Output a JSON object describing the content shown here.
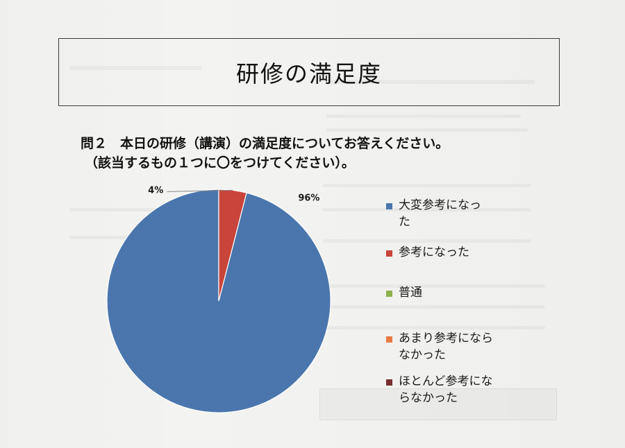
{
  "header": {
    "title": "研修の満足度"
  },
  "question": {
    "line1": "問２　本日の研修（講演）の満足度についてお答えください。",
    "line2": "（該当するもの１つに〇をつけてください）。"
  },
  "chart_data": {
    "type": "pie",
    "categories": [
      "大変参考になった",
      "参考になった",
      "普通",
      "あまり参考にならなかった",
      "ほとんど参考にならなかった"
    ],
    "values": [
      96,
      4,
      0,
      0,
      0
    ],
    "data_labels": [
      "96%",
      "4%",
      "",
      "",
      ""
    ],
    "colors": [
      "#4a76ad",
      "#c9443a",
      "#8fb34c",
      "#e97a45",
      "#7a2f2f"
    ],
    "legend": {
      "position": "right",
      "entries": [
        {
          "label": "大変参考になっ\nた",
          "color": "#4a76ad"
        },
        {
          "label": "参考になった",
          "color": "#c9443a"
        },
        {
          "label": "普通",
          "color": "#8fb34c"
        },
        {
          "label": "あまり参考になら\nなかった",
          "color": "#e97a45"
        },
        {
          "label": "ほとんど参考にな\nらなかった",
          "color": "#7a2f2f"
        }
      ]
    }
  }
}
